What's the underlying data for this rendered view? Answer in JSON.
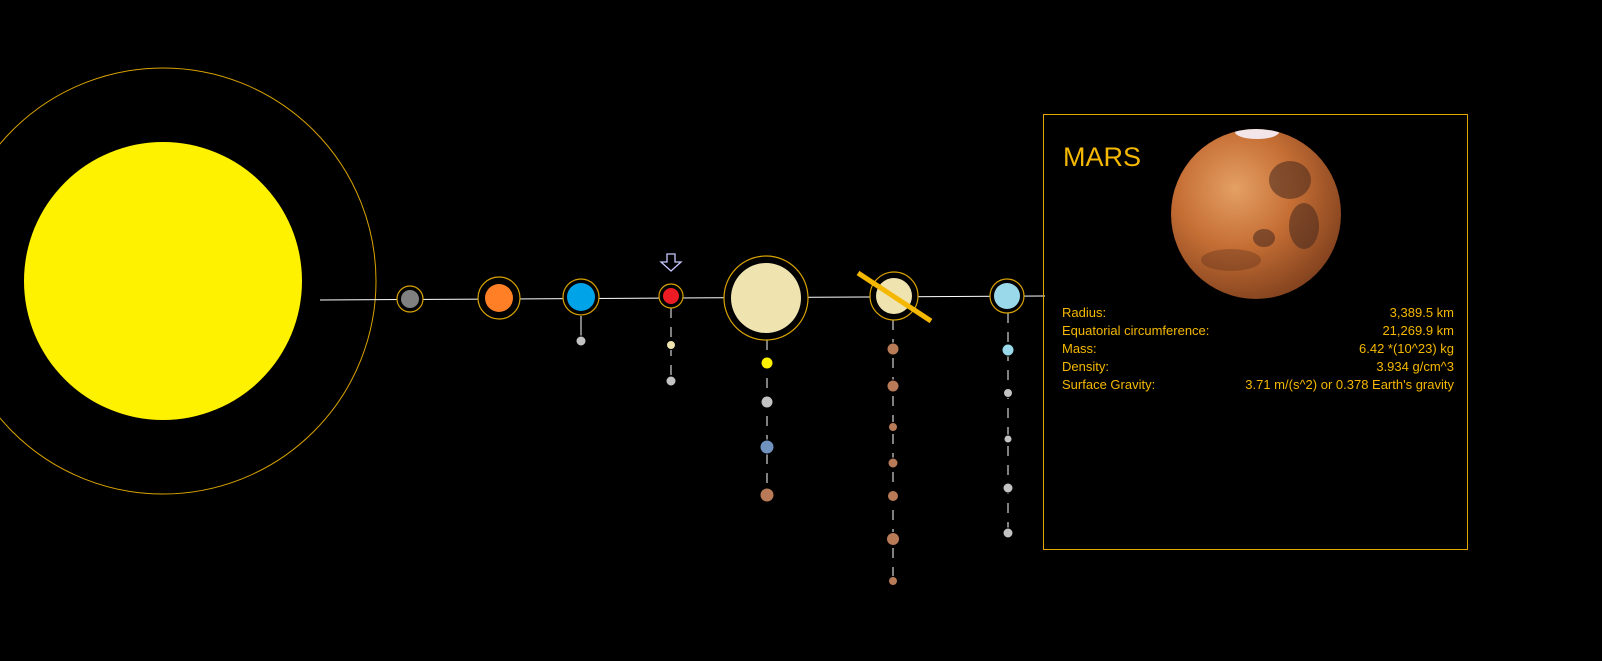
{
  "colors": {
    "background": "#000000",
    "accent": "#f5b800",
    "orbit": "#d9a300",
    "line": "#ffffff",
    "sun": "#fff200"
  },
  "planets": [
    {
      "name": "mercury",
      "color": "#808080"
    },
    {
      "name": "venus",
      "color": "#ff7f27"
    },
    {
      "name": "earth",
      "color": "#00a2e8"
    },
    {
      "name": "mars",
      "color": "#ed1c24"
    },
    {
      "name": "jupiter",
      "color": "#efe4b0"
    },
    {
      "name": "saturn",
      "color": "#efe4b0"
    },
    {
      "name": "uranus",
      "color": "#99d9ea"
    }
  ],
  "moon_colors": {
    "earth": [
      "#c3c3c3"
    ],
    "mars": [
      "#efe4b0",
      "#c3c3c3"
    ],
    "jupiter": [
      "#fff200",
      "#c3c3c3",
      "#7092be",
      "#b97a57"
    ],
    "saturn": [
      "#b97a57",
      "#b97a57",
      "#b97a57",
      "#b97a57",
      "#b97a57",
      "#b97a57",
      "#b97a57"
    ],
    "uranus": [
      "#99d9ea",
      "#c3c3c3",
      "#c3c3c3",
      "#c3c3c3",
      "#c3c3c3"
    ]
  },
  "selected_planet": "mars",
  "info_panel": {
    "title": "MARS",
    "image": "mars-image",
    "stats": [
      {
        "label": "Radius:",
        "value": "3,389.5 km"
      },
      {
        "label": "Equatorial circumference:",
        "value": "21,269.9 km"
      },
      {
        "label": "Mass:",
        "value": "6.42 *(10^23) kg"
      },
      {
        "label": "Density:",
        "value": "3.934 g/cm^3"
      },
      {
        "label": "Surface Gravity:",
        "value": "3.71 m/(s^2) or 0.378 Earth's gravity"
      }
    ]
  }
}
